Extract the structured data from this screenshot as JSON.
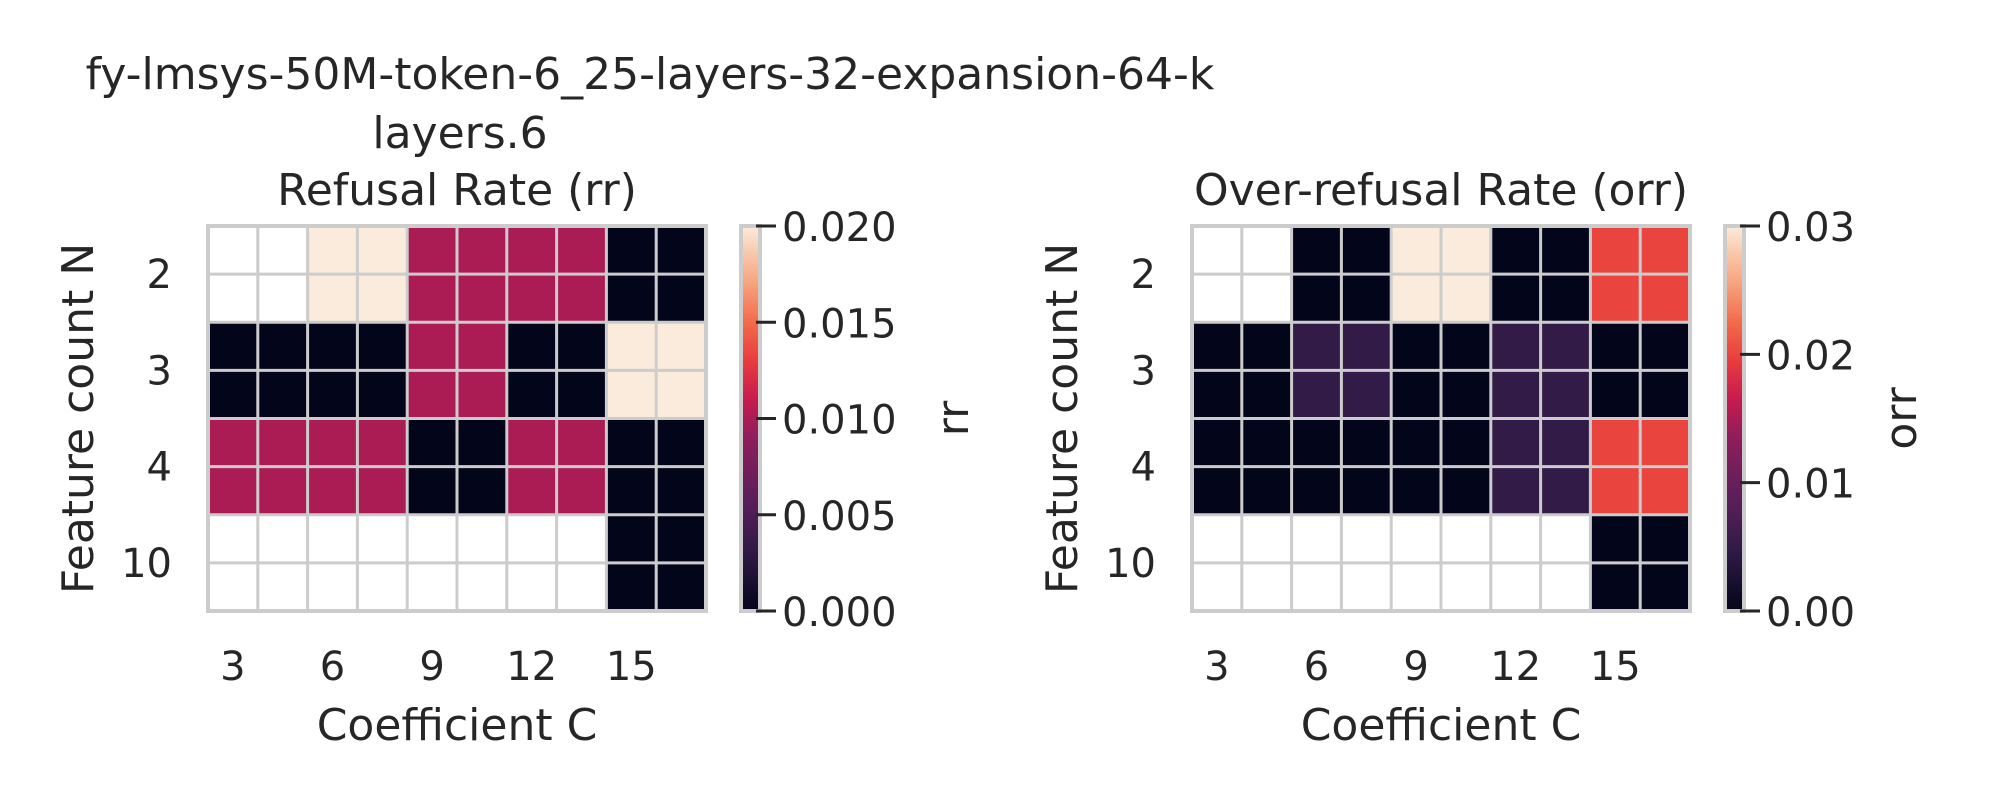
{
  "figure": {
    "suptitle_line1": "fy-lmsys-50M-token-6_25-layers-32-expansion-64-k",
    "suptitle_line2": "layers.6"
  },
  "chart_data": [
    {
      "type": "heatmap",
      "title": "Refusal Rate (rr)",
      "xlabel": "Coefficient C",
      "ylabel": "Feature count N",
      "x_tick_labels": [
        "3",
        "6",
        "9",
        "12",
        "15"
      ],
      "y_tick_labels": [
        "2",
        "3",
        "4",
        "10"
      ],
      "colorbar_label": "rr",
      "colorbar_range": [
        0,
        0.02
      ],
      "colorbar_ticks": [
        "0.000",
        "0.005",
        "0.010",
        "0.015",
        "0.020"
      ],
      "colormap": "rocket",
      "missing_color": "#ffffff",
      "grid": true,
      "values": [
        [
          null,
          0.02,
          0.01,
          0.01,
          0.0
        ],
        [
          0.0,
          0.0,
          0.01,
          0.0,
          0.02
        ],
        [
          0.01,
          0.01,
          0.0,
          0.01,
          0.0
        ],
        [
          null,
          null,
          null,
          null,
          0.0
        ]
      ]
    },
    {
      "type": "heatmap",
      "title": "Over-refusal Rate (orr)",
      "xlabel": "Coefficient C",
      "ylabel": "Feature count N",
      "x_tick_labels": [
        "3",
        "6",
        "9",
        "12",
        "15"
      ],
      "y_tick_labels": [
        "2",
        "3",
        "4",
        "10"
      ],
      "colorbar_label": "orr",
      "colorbar_range": [
        0,
        0.03
      ],
      "colorbar_ticks": [
        "0.00",
        "0.01",
        "0.02",
        "0.03"
      ],
      "colormap": "rocket",
      "missing_color": "#ffffff",
      "grid": true,
      "values": [
        [
          null,
          0.0,
          0.03,
          0.0,
          0.02
        ],
        [
          0.0,
          0.005,
          0.0,
          0.005,
          0.0
        ],
        [
          0.0,
          0.0,
          0.0,
          0.005,
          0.02
        ],
        [
          null,
          null,
          null,
          null,
          0.0
        ]
      ]
    }
  ]
}
